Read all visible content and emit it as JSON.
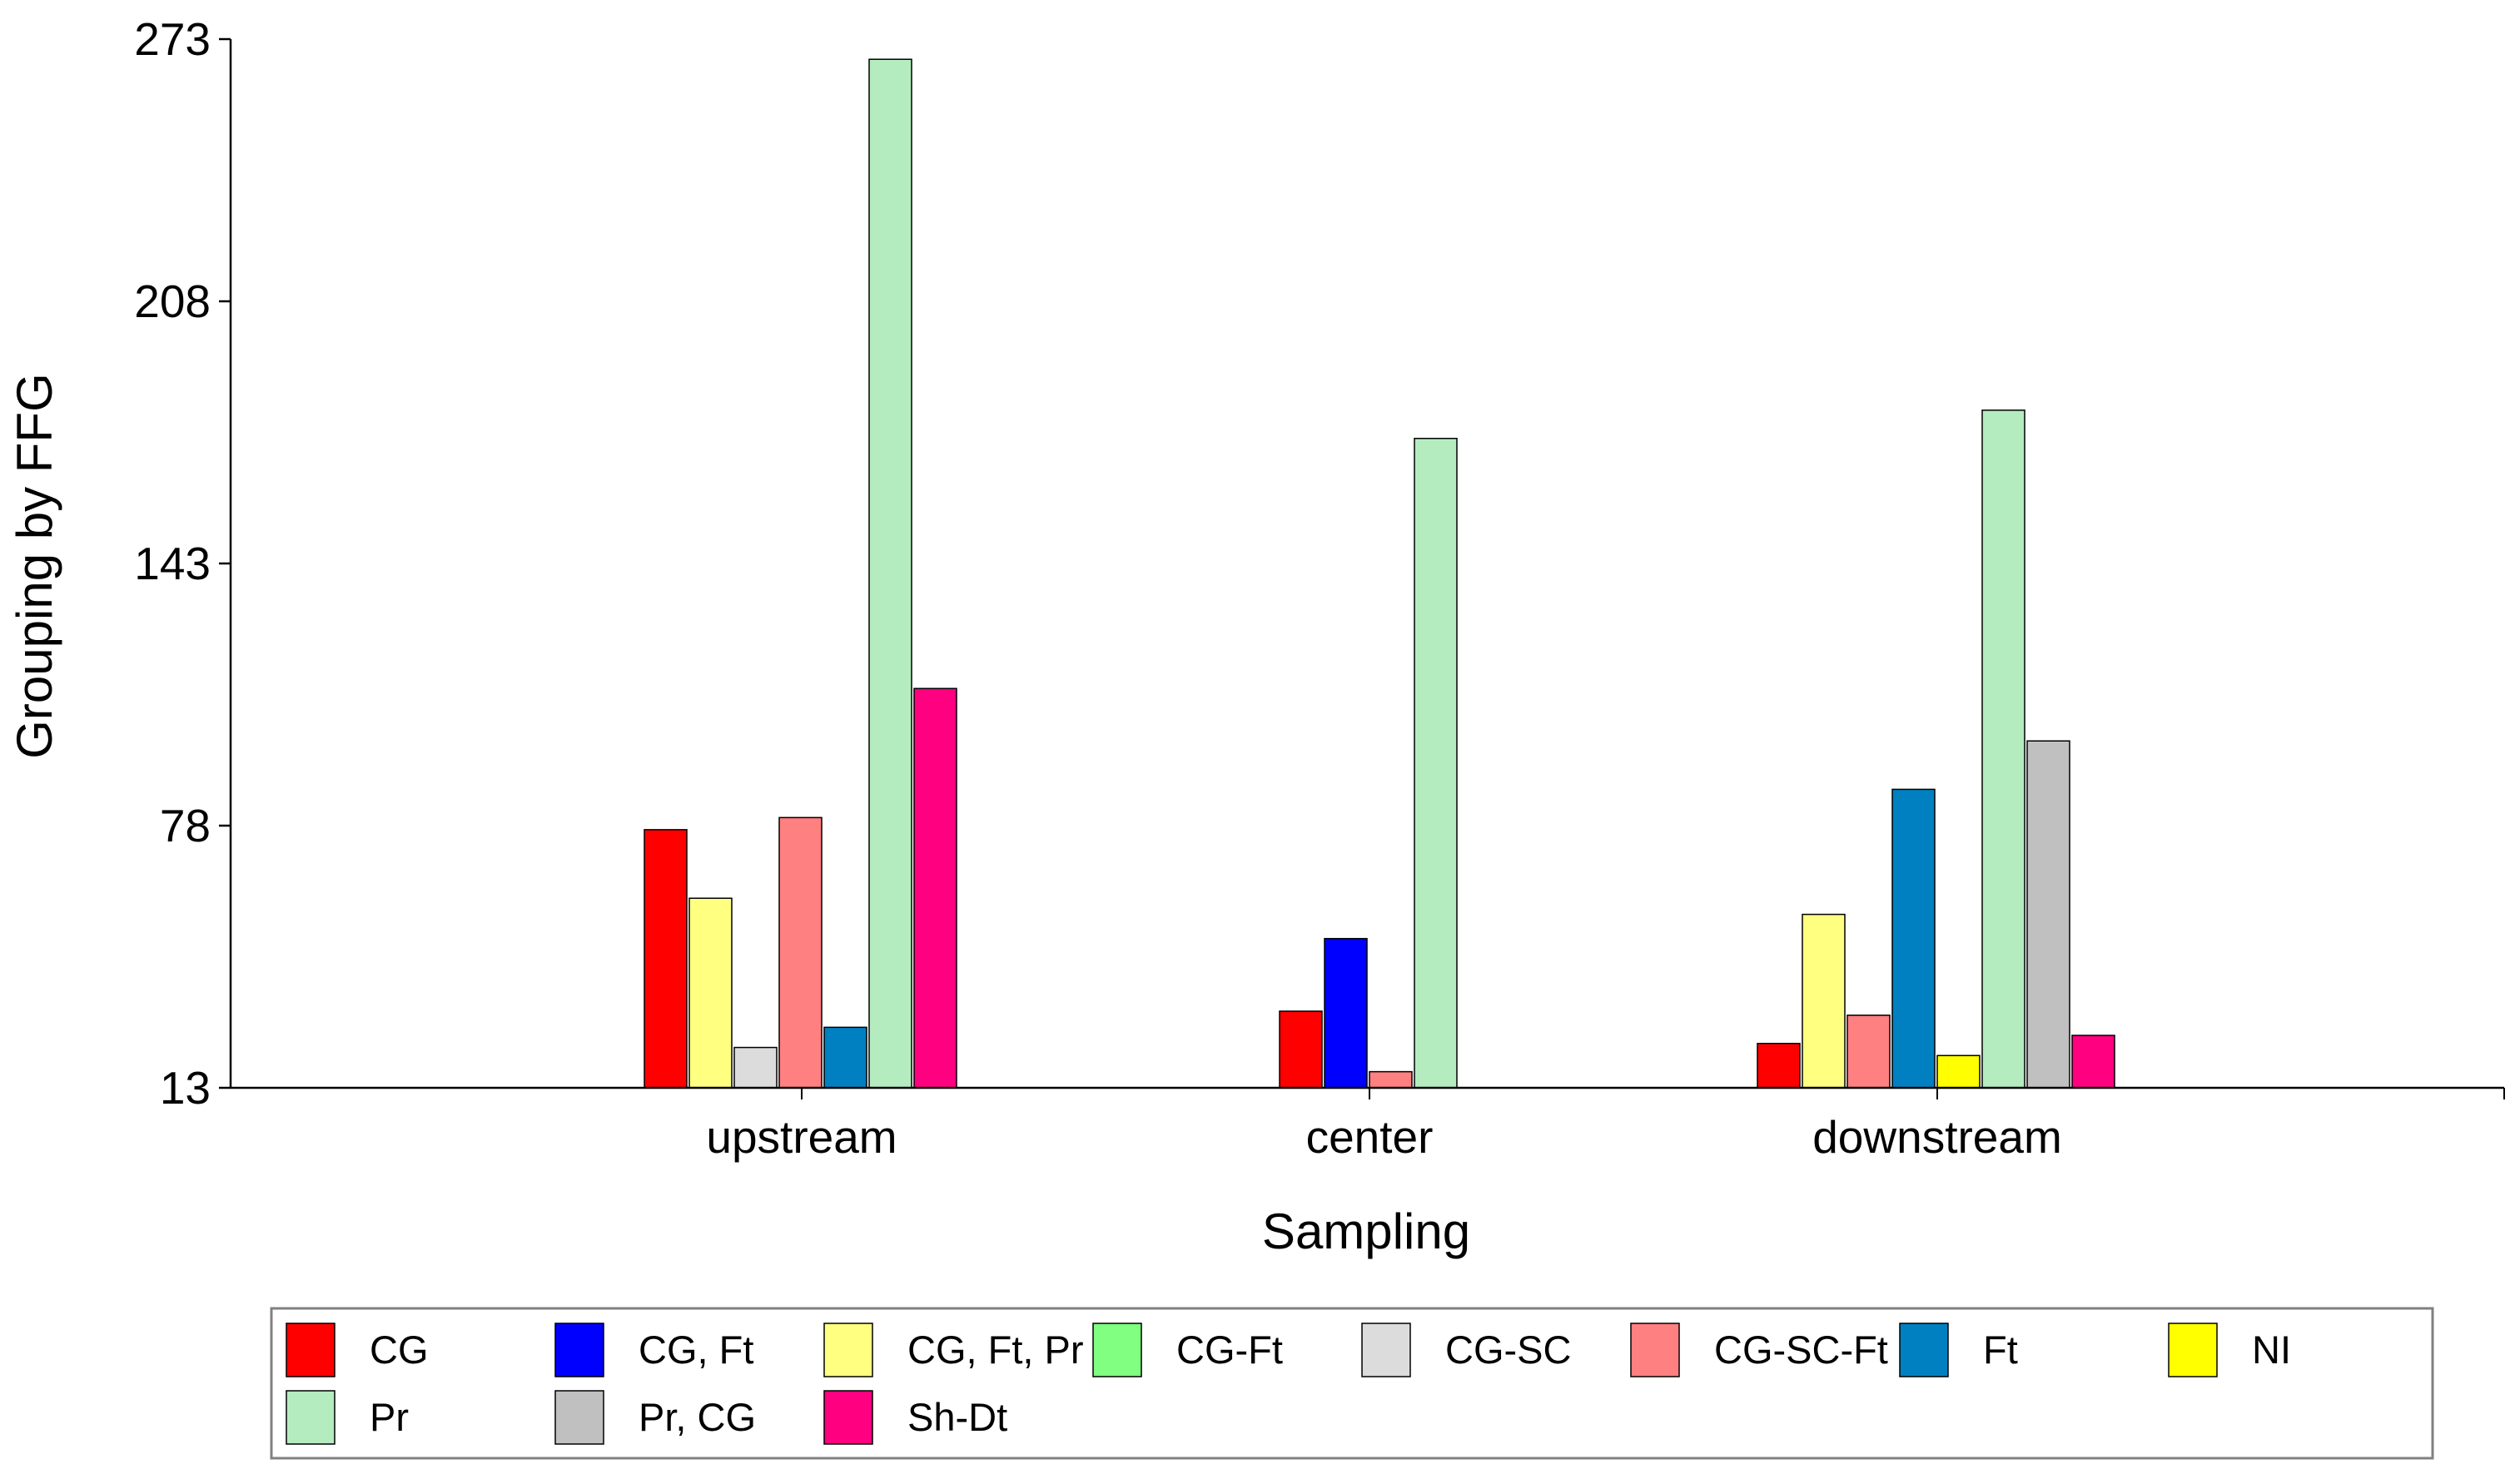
{
  "chart_data": {
    "type": "bar",
    "title": "",
    "xlabel": "Sampling",
    "ylabel": "Grouping by FFG",
    "ylim": [
      13,
      273
    ],
    "yticks": [
      "13",
      "78",
      "143",
      "208",
      "273"
    ],
    "categories": [
      "upstream",
      "center",
      "downstream"
    ],
    "series": [
      {
        "name": "CG",
        "color": "#ff0000",
        "values": [
          77,
          32,
          24
        ]
      },
      {
        "name": "CG, Ft",
        "color": "#0000ff",
        "values": [
          null,
          50,
          null
        ]
      },
      {
        "name": "CG, Ft, Pr",
        "color": "#ffff80",
        "values": [
          60,
          null,
          56
        ]
      },
      {
        "name": "CG-Ft",
        "color": "#80ff80",
        "values": [
          null,
          null,
          null
        ]
      },
      {
        "name": "CG-SC",
        "color": "#dcdcdc",
        "values": [
          23,
          null,
          null
        ]
      },
      {
        "name": "CG-SC-Ft",
        "color": "#ff8080",
        "values": [
          80,
          17,
          31
        ]
      },
      {
        "name": "Ft",
        "color": "#0080c0",
        "values": [
          28,
          null,
          87
        ]
      },
      {
        "name": "NI",
        "color": "#ffff00",
        "values": [
          null,
          null,
          21
        ]
      },
      {
        "name": "Pr",
        "color": "#b4ecc0",
        "values": [
          268,
          174,
          181
        ]
      },
      {
        "name": "Pr, CG",
        "color": "#c0c0c0",
        "values": [
          null,
          null,
          99
        ]
      },
      {
        "name": "Sh-Dt",
        "color": "#ff0080",
        "values": [
          112,
          null,
          26
        ]
      }
    ],
    "legend_position": "bottom",
    "grid": false
  }
}
